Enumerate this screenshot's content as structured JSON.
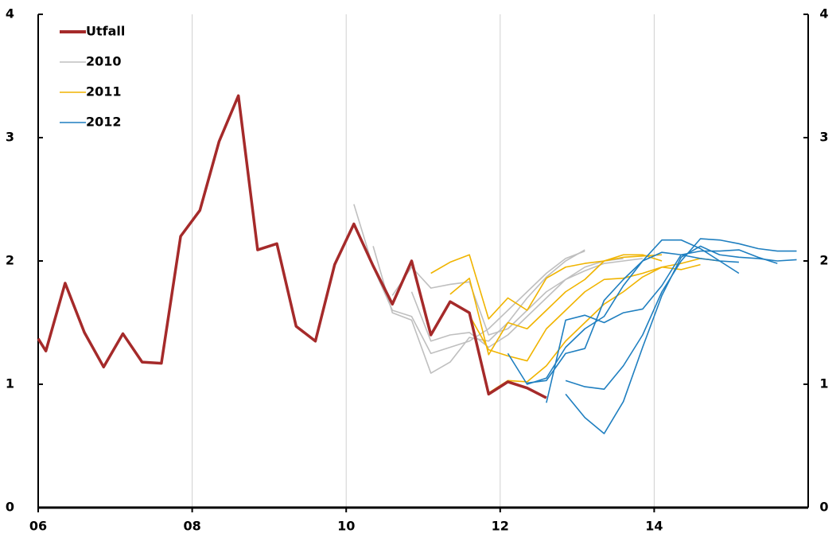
{
  "chart_data": {
    "type": "line",
    "xlim": [
      2006,
      2016
    ],
    "xticks": [
      {
        "value": 2006,
        "label": "06"
      },
      {
        "value": 2008,
        "label": "08"
      },
      {
        "value": 2010,
        "label": "10"
      },
      {
        "value": 2012,
        "label": "12"
      },
      {
        "value": 2014,
        "label": "14"
      }
    ],
    "ylim": [
      0,
      4
    ],
    "yticks": [
      0,
      1,
      2,
      3,
      4
    ],
    "y2lim": [
      0,
      4
    ],
    "y2ticks": [
      0,
      1,
      2,
      3,
      4
    ],
    "grid": true,
    "legend": "top-left",
    "series": [
      {
        "name": "Utfall",
        "color": "#a52a2a",
        "x": [
          2006.0,
          2006.1,
          2006.35,
          2006.6,
          2006.85,
          2007.1,
          2007.35,
          2007.6,
          2007.85,
          2008.1,
          2008.35,
          2008.6,
          2008.85,
          2009.1,
          2009.35,
          2009.6,
          2009.85,
          2010.1,
          2010.35,
          2010.6,
          2010.85,
          2011.1,
          2011.35,
          2011.6,
          2011.85,
          2012.1,
          2012.35,
          2012.6
        ],
        "values": [
          1.37,
          1.27,
          1.82,
          1.42,
          1.14,
          1.41,
          1.18,
          1.17,
          2.2,
          2.41,
          2.97,
          3.34,
          2.09,
          2.14,
          1.47,
          1.35,
          1.97,
          2.3,
          1.96,
          1.65,
          2.0,
          1.4,
          1.67,
          1.58,
          0.92,
          1.02,
          0.97,
          0.89
        ]
      },
      {
        "name": "2010",
        "color": "#bfbfbf",
        "lines": [
          {
            "x": [
              2010.1,
              2010.35,
              2010.6,
              2010.85,
              2011.1,
              2011.35,
              2011.6,
              2011.85,
              2012.1,
              2012.35,
              2012.6,
              2012.85,
              2013.1
            ],
            "values": [
              2.46,
              1.95,
              1.6,
              1.55,
              1.25,
              1.3,
              1.35,
              1.45,
              1.6,
              1.75,
              1.9,
              2.02,
              2.08
            ]
          },
          {
            "x": [
              2010.35,
              2010.6,
              2010.85,
              2011.1,
              2011.35,
              2011.6,
              2011.85,
              2012.1,
              2012.35,
              2012.6,
              2012.85,
              2013.1
            ],
            "values": [
              2.12,
              1.58,
              1.52,
              1.09,
              1.18,
              1.38,
              1.35,
              1.5,
              1.7,
              1.87,
              2.0,
              2.09
            ]
          },
          {
            "x": [
              2010.6,
              2010.85,
              2011.1,
              2011.35,
              2011.6,
              2011.85,
              2012.1,
              2012.35,
              2012.6,
              2012.85,
              2013.1,
              2013.35,
              2013.6
            ],
            "values": [
              1.72,
              1.95,
              1.78,
              1.81,
              1.83,
              1.4,
              1.45,
              1.6,
              1.75,
              1.85,
              1.95,
              2.0,
              2.02
            ]
          },
          {
            "x": [
              2010.85,
              2011.1,
              2011.35,
              2011.6,
              2011.85,
              2012.1,
              2012.35,
              2012.6,
              2012.85,
              2013.1,
              2013.35,
              2013.6,
              2013.85
            ],
            "values": [
              1.75,
              1.35,
              1.4,
              1.42,
              1.3,
              1.4,
              1.55,
              1.7,
              1.85,
              1.92,
              1.98,
              2.0,
              2.02
            ]
          }
        ]
      },
      {
        "name": "2011",
        "color": "#f0b400",
        "lines": [
          {
            "x": [
              2011.1,
              2011.35,
              2011.6,
              2011.85,
              2012.1,
              2012.35,
              2012.6,
              2012.85,
              2013.1,
              2013.35,
              2013.6,
              2013.85,
              2014.1
            ],
            "values": [
              1.9,
              1.99,
              2.05,
              1.53,
              1.7,
              1.6,
              1.86,
              1.95,
              1.98,
              2.0,
              2.03,
              2.04,
              2.05
            ]
          },
          {
            "x": [
              2011.35,
              2011.6,
              2011.85,
              2012.1,
              2012.35,
              2012.6,
              2012.85,
              2013.1,
              2013.35,
              2013.6,
              2013.85,
              2014.1
            ],
            "values": [
              1.73,
              1.86,
              1.24,
              1.5,
              1.45,
              1.6,
              1.75,
              1.85,
              2.0,
              2.05,
              2.05,
              2.0
            ]
          },
          {
            "x": [
              2011.6,
              2011.85,
              2012.1,
              2012.35,
              2012.6,
              2012.85,
              2013.1,
              2013.35,
              2013.6,
              2013.85,
              2014.1,
              2014.35,
              2014.6
            ],
            "values": [
              1.56,
              1.28,
              1.23,
              1.19,
              1.45,
              1.6,
              1.75,
              1.85,
              1.86,
              1.9,
              1.95,
              1.93,
              1.97
            ]
          },
          {
            "x": [
              2011.85,
              2012.1,
              2012.35,
              2012.6,
              2012.85,
              2013.1,
              2013.35,
              2013.6,
              2013.85,
              2014.1,
              2014.35,
              2014.6,
              2014.85
            ],
            "values": [
              0.93,
              1.03,
              1.02,
              1.15,
              1.35,
              1.5,
              1.65,
              1.75,
              1.87,
              1.95,
              1.98,
              2.02,
              2.0
            ]
          }
        ]
      },
      {
        "name": "2012",
        "color": "#1f7fc0",
        "lines": [
          {
            "x": [
              2012.1,
              2012.35,
              2012.6,
              2012.85,
              2013.1,
              2013.35,
              2013.6,
              2013.85,
              2014.1,
              2014.35,
              2014.6,
              2014.85,
              2015.1
            ],
            "values": [
              1.25,
              1.0,
              1.05,
              1.3,
              1.45,
              1.55,
              1.8,
              2.0,
              2.07,
              2.05,
              2.02,
              2.0,
              1.99
            ]
          },
          {
            "x": [
              2012.35,
              2012.6,
              2012.85,
              2013.1,
              2013.35,
              2013.6,
              2013.85,
              2014.1,
              2014.35,
              2014.6,
              2014.85,
              2015.1
            ],
            "values": [
              1.01,
              1.03,
              1.25,
              1.29,
              1.68,
              1.85,
              2.0,
              2.17,
              2.17,
              2.1,
              2.0,
              1.9
            ]
          },
          {
            "x": [
              2012.6,
              2012.85,
              2013.1,
              2013.35,
              2013.6,
              2013.85,
              2014.1,
              2014.35,
              2014.6,
              2014.85,
              2015.1,
              2015.35,
              2015.6
            ],
            "values": [
              0.85,
              1.52,
              1.56,
              1.5,
              1.58,
              1.61,
              1.8,
              2.05,
              2.08,
              2.08,
              2.09,
              2.03,
              1.98
            ]
          },
          {
            "x": [
              2012.85,
              2013.1,
              2013.35,
              2013.6,
              2013.85,
              2014.1,
              2014.35,
              2014.6,
              2014.85,
              2015.1,
              2015.35,
              2015.6,
              2015.85
            ],
            "values": [
              1.03,
              0.98,
              0.96,
              1.15,
              1.4,
              1.75,
              2.0,
              2.18,
              2.17,
              2.14,
              2.1,
              2.08,
              2.08
            ]
          },
          {
            "x": [
              2012.85,
              2013.1,
              2013.35,
              2013.6,
              2013.85,
              2014.1,
              2014.35,
              2014.6,
              2014.85,
              2015.1,
              2015.35,
              2015.6,
              2015.85
            ],
            "values": [
              0.92,
              0.73,
              0.6,
              0.86,
              1.3,
              1.72,
              2.03,
              2.12,
              2.05,
              2.03,
              2.02,
              2.0,
              2.01
            ]
          }
        ]
      }
    ]
  }
}
